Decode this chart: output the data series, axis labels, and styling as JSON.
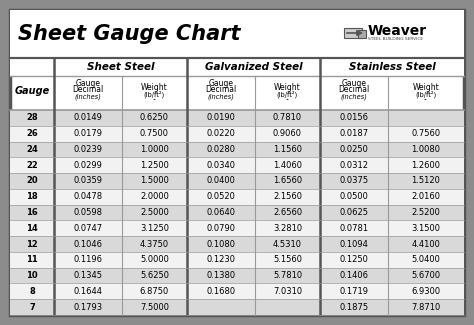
{
  "title": "Sheet Gauge Chart",
  "bg_gray": "#8c8c8c",
  "bg_white": "#ffffff",
  "row_light": "#f2f2f2",
  "row_dark": "#d9d9d9",
  "border_color": "#555555",
  "line_color": "#999999",
  "gauges": [
    "28",
    "26",
    "24",
    "22",
    "20",
    "18",
    "16",
    "14",
    "12",
    "11",
    "10",
    "8",
    "7"
  ],
  "sheet_steel_decimal": [
    "0.0149",
    "0.0179",
    "0.0239",
    "0.0299",
    "0.0359",
    "0.0478",
    "0.0598",
    "0.0747",
    "0.1046",
    "0.1196",
    "0.1345",
    "0.1644",
    "0.1793"
  ],
  "sheet_steel_weight": [
    "0.6250",
    "0.7500",
    "1.0000",
    "1.2500",
    "1.5000",
    "2.0000",
    "2.5000",
    "3.1250",
    "4.3750",
    "5.0000",
    "5.6250",
    "6.8750",
    "7.5000"
  ],
  "galv_decimal": [
    "0.0190",
    "0.0220",
    "0.0280",
    "0.0340",
    "0.0400",
    "0.0520",
    "0.0640",
    "0.0790",
    "0.1080",
    "0.1230",
    "0.1380",
    "0.1680",
    ""
  ],
  "galv_weight": [
    "0.7810",
    "0.9060",
    "1.1560",
    "1.4060",
    "1.6560",
    "2.1560",
    "2.6560",
    "3.2810",
    "4.5310",
    "5.1560",
    "5.7810",
    "7.0310",
    ""
  ],
  "stainless_decimal": [
    "0.0156",
    "0.0187",
    "0.0250",
    "0.0312",
    "0.0375",
    "0.0500",
    "0.0625",
    "0.0781",
    "0.1094",
    "0.1250",
    "0.1406",
    "0.1719",
    "0.1875"
  ],
  "stainless_weight": [
    "",
    "0.7560",
    "1.0080",
    "1.2600",
    "1.5120",
    "2.0160",
    "2.5200",
    "3.1500",
    "4.4100",
    "5.0400",
    "5.6700",
    "6.9300",
    "7.8710"
  ]
}
